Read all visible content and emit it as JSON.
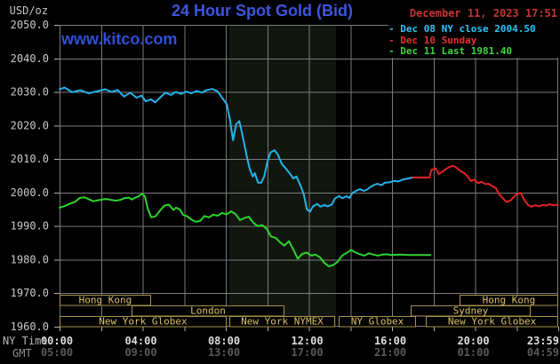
{
  "header": {
    "unit_label": "USD/oz",
    "title": "24 Hour Spot Gold (Bid)",
    "datetime": "December 11, 2023 17:51",
    "watermark": "www.kitco.com"
  },
  "legend": {
    "items": [
      {
        "swatch": "-",
        "label": "Dec 08 NY close 2004.50",
        "color": "#2fc5f5"
      },
      {
        "swatch": "-",
        "label": "Dec 10 Sunday",
        "color": "#e83030"
      },
      {
        "swatch": "-",
        "label": "Dec 11 Last 1981.40",
        "color": "#3fd43f"
      }
    ]
  },
  "x_axis": {
    "row1_label": "NY Time",
    "row2_label": "GMT",
    "ticks": [
      {
        "hour": 0,
        "ny": "00:00",
        "gmt": "05:00"
      },
      {
        "hour": 4,
        "ny": "04:00",
        "gmt": "09:00"
      },
      {
        "hour": 8,
        "ny": "08:00",
        "gmt": "13:00"
      },
      {
        "hour": 12,
        "ny": "12:00",
        "gmt": "17:00"
      },
      {
        "hour": 16,
        "ny": "16:00",
        "gmt": "21:00"
      },
      {
        "hour": 20,
        "ny": "20:00",
        "gmt": "01:00"
      },
      {
        "hour": 23.983,
        "ny": "23:59",
        "gmt": "04:59"
      }
    ]
  },
  "colors": {
    "background": "#000000",
    "grid": "#7a7a7a",
    "tick": "#b0b0b0",
    "y_label": "#c9c9c9",
    "x_label_ny": "#dcdcdc",
    "x_label_gmt": "#5a5a5a",
    "session_border": "#a6924a",
    "session_text": "#dcc268",
    "band": "#11170f",
    "title_blue": "#3d56e0",
    "date_red": "#c53434"
  },
  "chart_data": {
    "type": "line",
    "title": "24 Hour Spot Gold (Bid)",
    "ylabel": "USD/oz",
    "xlabel": "NY Time",
    "x_range_hours": [
      0,
      24
    ],
    "ylim": [
      1960,
      2050
    ],
    "y_tick_step": 10,
    "y_tick_labels": [
      "2050.0",
      "2040.0",
      "2030.0",
      "2020.0",
      "2010.0",
      "2000.0",
      "1990.0",
      "1980.0",
      "1970.0",
      "1960.0"
    ],
    "grid": "on, vertical every 2 hours, horizontal every 10 USD",
    "legend_position": "top-right",
    "highlight_band_hours": [
      8.17,
      13.3
    ],
    "series": [
      {
        "name": "Dec 08 NY close 2004.50",
        "color": "#25b2e8",
        "points": [
          [
            0,
            2030.8
          ],
          [
            0.25,
            2031.3
          ],
          [
            0.6,
            2029.9
          ],
          [
            1,
            2030.5
          ],
          [
            1.4,
            2029.6
          ],
          [
            1.8,
            2030.2
          ],
          [
            2.2,
            2030.8
          ],
          [
            2.5,
            2030
          ],
          [
            2.8,
            2030.6
          ],
          [
            3.1,
            2028.6
          ],
          [
            3.4,
            2029.8
          ],
          [
            3.7,
            2028.3
          ],
          [
            3.95,
            2028.9
          ],
          [
            4.15,
            2027.2
          ],
          [
            4.4,
            2027.8
          ],
          [
            4.6,
            2026.9
          ],
          [
            4.85,
            2028.4
          ],
          [
            5.1,
            2029.8
          ],
          [
            5.35,
            2029.1
          ],
          [
            5.6,
            2030
          ],
          [
            5.85,
            2029.4
          ],
          [
            6.1,
            2030.1
          ],
          [
            6.35,
            2029.6
          ],
          [
            6.6,
            2030.3
          ],
          [
            6.85,
            2029.8
          ],
          [
            7.1,
            2030.6
          ],
          [
            7.35,
            2030.9
          ],
          [
            7.6,
            2030.2
          ],
          [
            7.75,
            2028.9
          ],
          [
            7.9,
            2027.6
          ],
          [
            8.05,
            2026.3
          ],
          [
            8.2,
            2021.7
          ],
          [
            8.35,
            2015.6
          ],
          [
            8.5,
            2020.4
          ],
          [
            8.65,
            2021.3
          ],
          [
            8.8,
            2017.2
          ],
          [
            9,
            2011.1
          ],
          [
            9.15,
            2007.1
          ],
          [
            9.3,
            2004.8
          ],
          [
            9.4,
            2005.8
          ],
          [
            9.55,
            2003
          ],
          [
            9.7,
            2002.9
          ],
          [
            9.85,
            2004.8
          ],
          [
            10,
            2009.1
          ],
          [
            10.15,
            2012
          ],
          [
            10.35,
            2012.6
          ],
          [
            10.5,
            2011.4
          ],
          [
            10.7,
            2008.5
          ],
          [
            10.9,
            2007.1
          ],
          [
            11.1,
            2005.5
          ],
          [
            11.25,
            2004.2
          ],
          [
            11.4,
            2004.8
          ],
          [
            11.6,
            2002.1
          ],
          [
            11.75,
            1999.5
          ],
          [
            11.9,
            1995
          ],
          [
            12.05,
            1994.3
          ],
          [
            12.2,
            1995.9
          ],
          [
            12.4,
            1996.6
          ],
          [
            12.55,
            1995.8
          ],
          [
            12.75,
            1996.3
          ],
          [
            12.9,
            1995.9
          ],
          [
            13.1,
            1996.4
          ],
          [
            13.25,
            1998.2
          ],
          [
            13.45,
            1999
          ],
          [
            13.6,
            1998.3
          ],
          [
            13.8,
            1998.9
          ],
          [
            13.95,
            1998.4
          ],
          [
            14.1,
            1999.9
          ],
          [
            14.3,
            2000.6
          ],
          [
            14.45,
            2001
          ],
          [
            14.65,
            2000.5
          ],
          [
            14.8,
            2000.9
          ],
          [
            15,
            2001.8
          ],
          [
            15.15,
            2002.3
          ],
          [
            15.3,
            2002.6
          ],
          [
            15.5,
            2002.2
          ],
          [
            15.65,
            2002.9
          ],
          [
            15.9,
            2003.1
          ],
          [
            16.1,
            2003.5
          ],
          [
            16.3,
            2003.3
          ],
          [
            16.5,
            2003.8
          ],
          [
            16.7,
            2004.1
          ],
          [
            16.85,
            2004.3
          ],
          [
            17,
            2004.5
          ]
        ]
      },
      {
        "name": "Dec 10 Sunday",
        "color": "#e62222",
        "points": [
          [
            17,
            2004.5
          ],
          [
            17.8,
            2004.5
          ],
          [
            17.9,
            2006.8
          ],
          [
            18.1,
            2007.2
          ],
          [
            18.25,
            2005.5
          ],
          [
            18.4,
            2006.1
          ],
          [
            18.6,
            2007
          ],
          [
            18.75,
            2007.6
          ],
          [
            18.95,
            2008
          ],
          [
            19.1,
            2007.4
          ],
          [
            19.3,
            2006.4
          ],
          [
            19.45,
            2005.9
          ],
          [
            19.6,
            2005.1
          ],
          [
            19.8,
            2003.4
          ],
          [
            19.95,
            2003.8
          ],
          [
            20.15,
            2002.8
          ],
          [
            20.3,
            2003.2
          ],
          [
            20.5,
            2002.5
          ],
          [
            20.65,
            2002.6
          ],
          [
            20.8,
            2002
          ],
          [
            21,
            2001.3
          ],
          [
            21.15,
            1999.5
          ],
          [
            21.35,
            1998.2
          ],
          [
            21.5,
            1997.2
          ],
          [
            21.7,
            1997.6
          ],
          [
            21.85,
            1998.6
          ],
          [
            22,
            1999.5
          ],
          [
            22.2,
            1999.9
          ],
          [
            22.35,
            1998
          ],
          [
            22.55,
            1996.3
          ],
          [
            22.7,
            1995.8
          ],
          [
            22.9,
            1996.2
          ],
          [
            23.05,
            1995.9
          ],
          [
            23.25,
            1996.3
          ],
          [
            23.4,
            1996.1
          ],
          [
            23.6,
            1996.5
          ],
          [
            23.75,
            1996.2
          ],
          [
            23.98,
            1996.4
          ]
        ]
      },
      {
        "name": "Dec 11 Last 1981.40",
        "color": "#2dd42d",
        "points": [
          [
            0,
            1995.5
          ],
          [
            0.21,
            1995.9
          ],
          [
            0.47,
            1996.6
          ],
          [
            0.73,
            1997.2
          ],
          [
            0.98,
            1998.4
          ],
          [
            1.2,
            1998.6
          ],
          [
            1.41,
            1998
          ],
          [
            1.63,
            1997.4
          ],
          [
            1.84,
            1997.7
          ],
          [
            2.05,
            1997.9
          ],
          [
            2.27,
            1998.1
          ],
          [
            2.48,
            1997.8
          ],
          [
            2.7,
            1997.6
          ],
          [
            2.91,
            1997.8
          ],
          [
            3.12,
            1998.3
          ],
          [
            3.34,
            1998.5
          ],
          [
            3.47,
            1997.9
          ],
          [
            3.64,
            1998.5
          ],
          [
            3.81,
            1998.9
          ],
          [
            3.98,
            1999.7
          ],
          [
            4.11,
            1998.8
          ],
          [
            4.24,
            1995.3
          ],
          [
            4.41,
            1992.6
          ],
          [
            4.62,
            1992.9
          ],
          [
            4.83,
            1994.6
          ],
          [
            5.05,
            1996.1
          ],
          [
            5.26,
            1996.4
          ],
          [
            5.48,
            1994.8
          ],
          [
            5.6,
            1995.5
          ],
          [
            5.78,
            1995
          ],
          [
            5.95,
            1993.3
          ],
          [
            6.12,
            1993
          ],
          [
            6.33,
            1992
          ],
          [
            6.54,
            1991.3
          ],
          [
            6.76,
            1991.5
          ],
          [
            6.97,
            1993
          ],
          [
            7.19,
            1992.6
          ],
          [
            7.4,
            1993.4
          ],
          [
            7.61,
            1993.1
          ],
          [
            7.83,
            1993.9
          ],
          [
            8.04,
            1993.5
          ],
          [
            8.26,
            1994.4
          ],
          [
            8.47,
            1993.6
          ],
          [
            8.68,
            1991.8
          ],
          [
            8.9,
            1992.4
          ],
          [
            9.11,
            1992.8
          ],
          [
            9.33,
            1991
          ],
          [
            9.54,
            1990
          ],
          [
            9.75,
            1990.3
          ],
          [
            9.97,
            1989.2
          ],
          [
            10.18,
            1986.9
          ],
          [
            10.4,
            1986.5
          ],
          [
            10.61,
            1985.2
          ],
          [
            10.82,
            1984.2
          ],
          [
            11.04,
            1985.5
          ],
          [
            11.25,
            1983
          ],
          [
            11.46,
            1980.3
          ],
          [
            11.68,
            1981.7
          ],
          [
            11.89,
            1982.1
          ],
          [
            12.11,
            1981.2
          ],
          [
            12.32,
            1981.5
          ],
          [
            12.53,
            1980.7
          ],
          [
            12.75,
            1979
          ],
          [
            12.96,
            1978
          ],
          [
            13.18,
            1978.4
          ],
          [
            13.39,
            1979.4
          ],
          [
            13.6,
            1981.2
          ],
          [
            13.82,
            1982
          ],
          [
            14.03,
            1982.9
          ],
          [
            14.25,
            1982.1
          ],
          [
            14.46,
            1981.6
          ],
          [
            14.67,
            1981.2
          ],
          [
            14.89,
            1981.9
          ],
          [
            15.1,
            1981.5
          ],
          [
            15.32,
            1981.2
          ],
          [
            15.53,
            1981.5
          ],
          [
            15.74,
            1981.6
          ],
          [
            15.96,
            1981.4
          ],
          [
            16.38,
            1981.5
          ],
          [
            16.81,
            1981.4
          ],
          [
            17.24,
            1981.4
          ],
          [
            17.85,
            1981.4
          ]
        ]
      }
    ],
    "sessions": [
      {
        "label": "Hong Kong",
        "row": 0,
        "start": 0,
        "end": 4.4
      },
      {
        "label": "Hong Kong",
        "row": 0,
        "start": 19.25,
        "end": 24
      },
      {
        "label": "London",
        "row": 1,
        "start": 3.47,
        "end": 10.82
      },
      {
        "label": "Sydney",
        "row": 1,
        "start": 16.9,
        "end": 22.67
      },
      {
        "label": "New York Globex",
        "row": 2,
        "start": 0,
        "end": 8.04
      },
      {
        "label": "New York NYMEX",
        "row": 2,
        "start": 8.17,
        "end": 13.26
      },
      {
        "label": "NY Globex",
        "row": 2,
        "start": 13.43,
        "end": 17.16
      },
      {
        "label": "New York Globex",
        "row": 2,
        "start": 17.63,
        "end": 24
      }
    ]
  }
}
